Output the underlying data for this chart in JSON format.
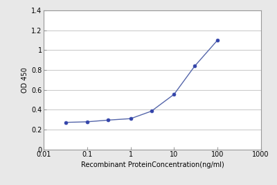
{
  "x_values": [
    0.032,
    0.1,
    0.3,
    1.0,
    3.0,
    10.0,
    30.0,
    100.0
  ],
  "y_values": [
    0.272,
    0.278,
    0.295,
    0.31,
    0.385,
    0.555,
    0.84,
    1.1
  ],
  "line_color": "#5566aa",
  "marker_color": "#3344aa",
  "marker_style": "o",
  "marker_size": 3.5,
  "xlabel": "Recombinant ProteinConcentration(ng/ml)",
  "ylabel": "OD 450",
  "xlim": [
    0.01,
    1000
  ],
  "ylim": [
    0,
    1.4
  ],
  "yticks": [
    0,
    0.2,
    0.4,
    0.6,
    0.8,
    1.0,
    1.2,
    1.4
  ],
  "xticks": [
    0.01,
    0.1,
    1,
    10,
    100,
    1000
  ],
  "xtick_labels": [
    "0.01",
    "0.1",
    "1",
    "10",
    "100",
    "1000"
  ],
  "plot_bg_color": "#ffffff",
  "fig_bg_color": "#e8e8e8",
  "grid_color": "#cccccc",
  "spine_color": "#999999",
  "label_fontsize": 7,
  "tick_fontsize": 7,
  "ylabel_fontsize": 7
}
